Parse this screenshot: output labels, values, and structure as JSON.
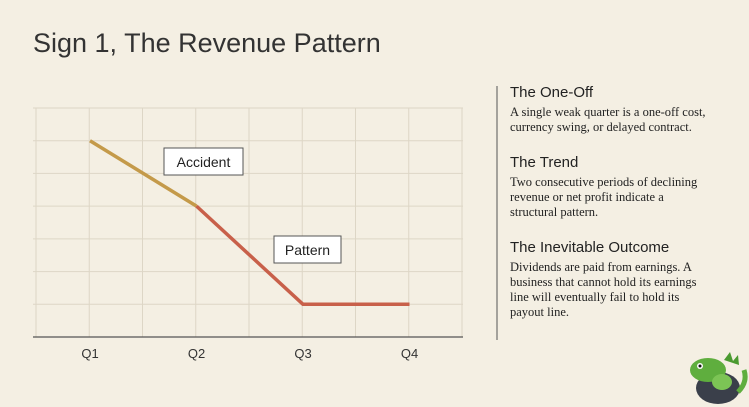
{
  "title": "Sign 1, The Revenue Pattern",
  "chart_data": {
    "type": "line",
    "categories": [
      "Q1",
      "Q2",
      "Q3",
      "Q4"
    ],
    "series": [
      {
        "name": "Accident",
        "color": "#c49a4a",
        "values": [
          6,
          4,
          null,
          null
        ]
      },
      {
        "name": "Pattern",
        "color": "#c8604a",
        "values": [
          null,
          4,
          1,
          1
        ]
      }
    ],
    "ylim": [
      0,
      7
    ],
    "yticks": [
      0,
      1,
      2,
      3,
      4,
      5,
      6,
      7
    ],
    "grid": true
  },
  "sidebar": {
    "items": [
      {
        "heading": "The One-Off",
        "text": "A single weak quarter is a one-off cost, currency swing, or delayed contract."
      },
      {
        "heading": "The Trend",
        "text": "Two consecutive periods of declining revenue or net profit indicate a structural pattern."
      },
      {
        "heading": "The Inevitable Outcome",
        "text": "Dividends are paid from earnings. A business that cannot hold its earnings line will eventually fail to hold its payout line."
      }
    ]
  }
}
